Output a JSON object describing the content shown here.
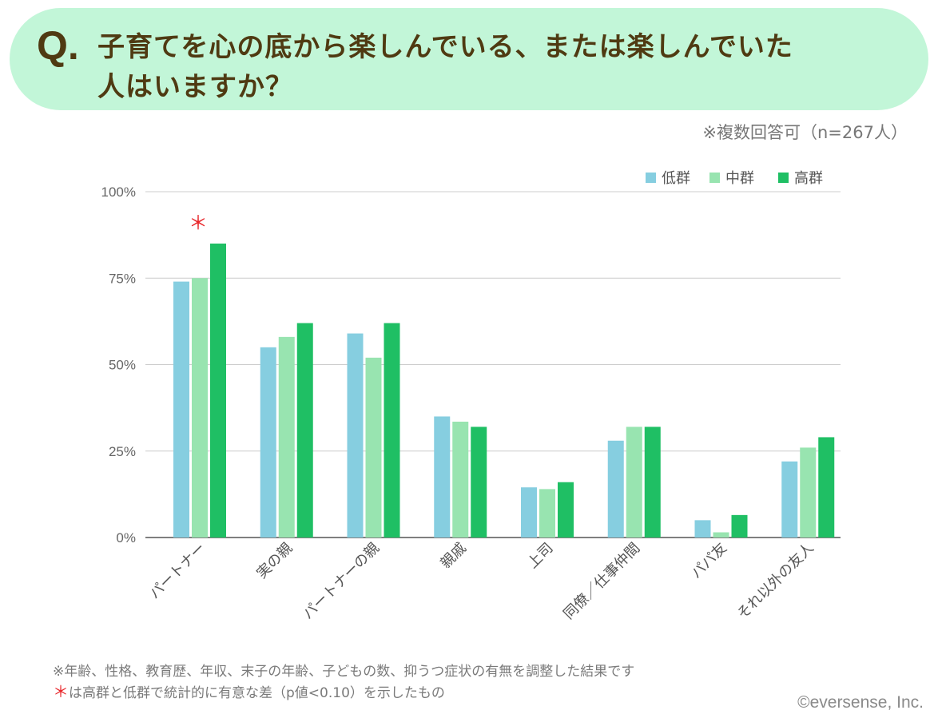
{
  "header": {
    "q_mark": "Q.",
    "question_line1": "子育てを心の底から楽しんでいる、または楽しんでいた",
    "question_line2": "人はいますか？"
  },
  "note_top": "※複数回答可（n=267人）",
  "footnotes": {
    "line1": "※年齢、性格、教育歴、年収、末子の年齢、子どもの数、抑うつ症状の有無を調整した結果です",
    "line2_mark": "＊",
    "line2_text": "は高群と低群で統計的に有意な差（p値<0.10）を示したもの"
  },
  "copyright": "©eversense, Inc.",
  "colors": {
    "title_bg": "#c2f6d8",
    "title_text": "#4f3a12",
    "low": "#86cee0",
    "mid": "#98e4b0",
    "high": "#1fbf64",
    "significance_mark": "#e8262a"
  },
  "chart_data": {
    "type": "bar",
    "categories": [
      "パートナー",
      "実の親",
      "パートナーの親",
      "親戚",
      "上司",
      "同僚／仕事仲間",
      "パパ友",
      "それ以外の友人"
    ],
    "series": [
      {
        "name": "低群",
        "color": "#86cee0",
        "values": [
          74,
          55,
          59,
          35,
          14.5,
          28,
          5,
          22
        ]
      },
      {
        "name": "中群",
        "color": "#98e4b0",
        "values": [
          75,
          58,
          52,
          33.5,
          14,
          32,
          1.5,
          26
        ]
      },
      {
        "name": "高群",
        "color": "#1fbf64",
        "values": [
          85,
          62,
          62,
          32,
          16,
          32,
          6.5,
          29
        ]
      }
    ],
    "y_ticks": [
      "0%",
      "25%",
      "50%",
      "75%",
      "100%"
    ],
    "y_tick_values": [
      0,
      25,
      50,
      75,
      100
    ],
    "ylim": [
      0,
      100
    ],
    "grid": true,
    "legend_position": "top-right",
    "significance": [
      {
        "category_index": 0,
        "mark": "＊"
      }
    ]
  }
}
